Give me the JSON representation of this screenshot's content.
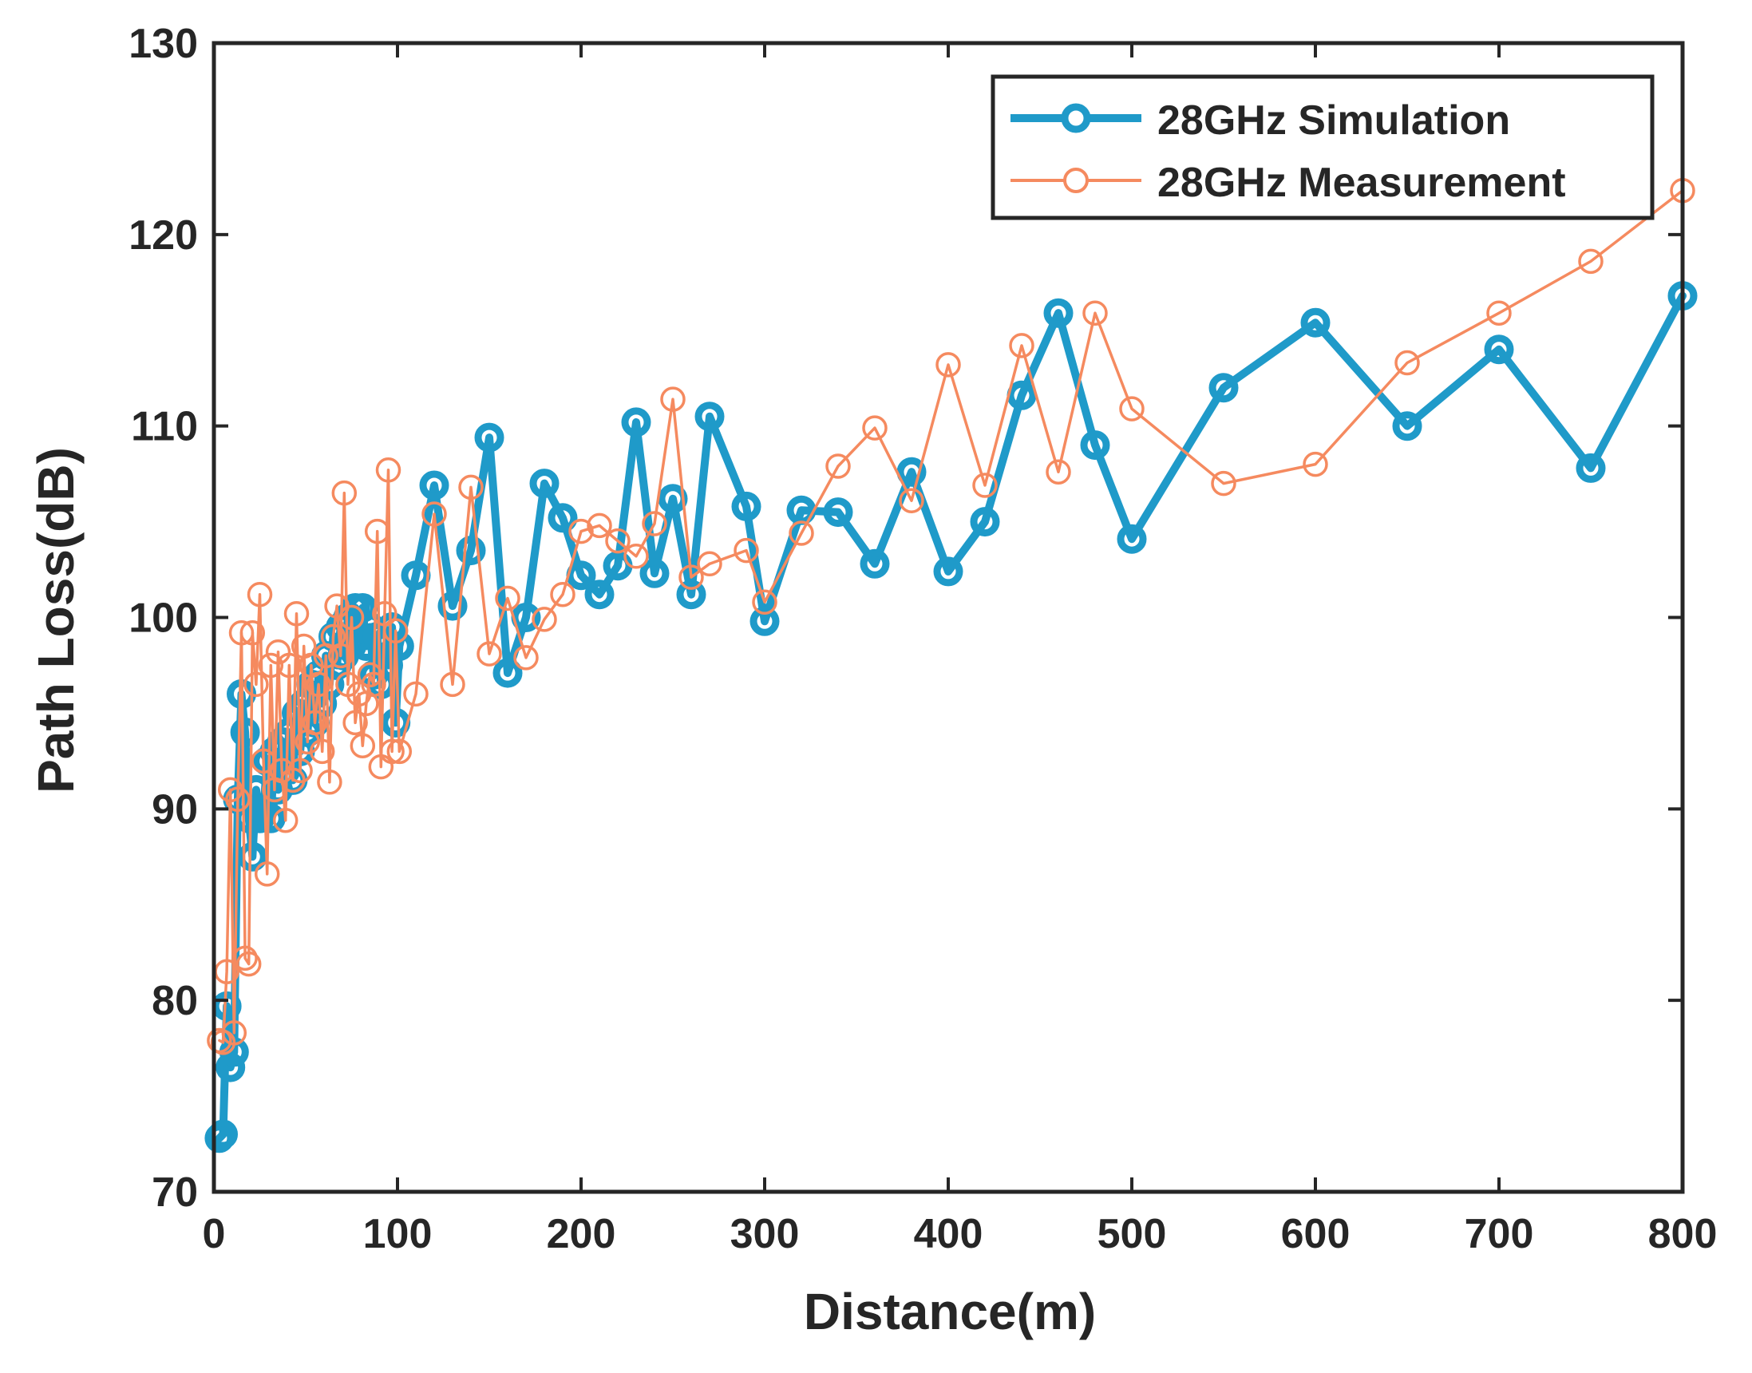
{
  "chart_data": {
    "type": "line",
    "title": "",
    "xlabel": "Distance(m)",
    "ylabel": "Path Loss(dB)",
    "xlim": [
      0,
      800
    ],
    "ylim": [
      70,
      130
    ],
    "xticks": [
      0,
      100,
      200,
      300,
      400,
      500,
      600,
      700,
      800
    ],
    "yticks": [
      70,
      80,
      90,
      100,
      110,
      120,
      130
    ],
    "legend_position": "top-right",
    "grid": false,
    "series": [
      {
        "name": "28GHz Simulation",
        "color": "#1f9ac9",
        "marker": "circle",
        "weight": "thick",
        "x": [
          3,
          5,
          7,
          9,
          11,
          13,
          15,
          17,
          19,
          21,
          23,
          25,
          27,
          29,
          31,
          33,
          35,
          37,
          39,
          41,
          43,
          45,
          47,
          49,
          51,
          53,
          55,
          57,
          59,
          61,
          63,
          65,
          67,
          69,
          71,
          73,
          75,
          77,
          79,
          81,
          83,
          85,
          87,
          89,
          91,
          93,
          95,
          97,
          99,
          101,
          110,
          120,
          130,
          140,
          150,
          160,
          170,
          180,
          190,
          200,
          210,
          220,
          230,
          240,
          250,
          260,
          270,
          290,
          300,
          320,
          340,
          360,
          380,
          400,
          420,
          440,
          460,
          480,
          500,
          550,
          600,
          650,
          700,
          750,
          800
        ],
        "values": [
          72.8,
          73.0,
          79.7,
          76.5,
          77.3,
          90.5,
          96.0,
          94.0,
          89.5,
          87.5,
          91.0,
          89.5,
          90.0,
          92.5,
          89.5,
          93.0,
          91.0,
          93.5,
          92.0,
          94.0,
          91.5,
          95.0,
          93.0,
          95.5,
          94.0,
          96.5,
          94.5,
          97.0,
          95.5,
          98.0,
          96.5,
          99.0,
          97.5,
          99.5,
          98.0,
          100.0,
          98.5,
          100.5,
          99.0,
          100.5,
          98.5,
          99.5,
          97.0,
          99.0,
          96.5,
          98.5,
          97.5,
          99.5,
          94.5,
          98.5,
          102.2,
          106.9,
          100.6,
          103.5,
          109.4,
          97.1,
          100.0,
          107.0,
          105.2,
          102.2,
          101.2,
          102.7,
          110.2,
          102.3,
          106.2,
          101.2,
          110.5,
          105.8,
          99.8,
          105.6,
          105.5,
          102.8,
          107.6,
          102.4,
          105.0,
          111.6,
          115.9,
          109.0,
          104.1,
          112.0,
          115.4,
          110.0,
          114.0,
          107.8,
          116.8
        ]
      },
      {
        "name": "28GHz Measurement",
        "color": "#f58a5f",
        "marker": "circle",
        "weight": "thin",
        "x": [
          3,
          5,
          7,
          9,
          11,
          13,
          15,
          17,
          19,
          21,
          23,
          25,
          27,
          29,
          31,
          33,
          35,
          37,
          39,
          41,
          43,
          45,
          47,
          49,
          51,
          53,
          55,
          57,
          59,
          61,
          63,
          65,
          67,
          69,
          71,
          73,
          75,
          77,
          79,
          81,
          83,
          85,
          87,
          89,
          91,
          93,
          95,
          97,
          99,
          101,
          110,
          120,
          130,
          140,
          150,
          160,
          170,
          180,
          190,
          200,
          210,
          220,
          230,
          240,
          250,
          260,
          270,
          290,
          300,
          320,
          340,
          360,
          380,
          400,
          420,
          440,
          460,
          480,
          500,
          550,
          600,
          650,
          700,
          750,
          800
        ],
        "values": [
          77.9,
          77.8,
          81.5,
          91.0,
          78.3,
          90.5,
          99.2,
          82.2,
          81.9,
          99.2,
          96.5,
          101.2,
          92.5,
          86.6,
          97.5,
          91.0,
          98.2,
          92.0,
          89.4,
          97.5,
          91.5,
          100.2,
          92.0,
          98.5,
          93.5,
          97.5,
          94.5,
          96.5,
          93.0,
          98.0,
          91.4,
          99.0,
          100.6,
          98.0,
          106.5,
          96.5,
          100.0,
          94.5,
          96.0,
          93.3,
          95.5,
          97.0,
          96.5,
          104.5,
          92.2,
          100.2,
          107.7,
          93.0,
          99.3,
          93.0,
          96.0,
          105.4,
          96.5,
          106.8,
          98.1,
          101.0,
          97.9,
          99.9,
          101.2,
          104.5,
          104.8,
          104.0,
          103.2,
          104.9,
          111.4,
          102.1,
          102.8,
          103.5,
          100.8,
          104.4,
          107.9,
          109.9,
          106.1,
          113.2,
          106.9,
          114.2,
          107.6,
          115.9,
          110.9,
          107.0,
          108.0,
          113.3,
          115.9,
          118.6,
          122.3
        ]
      }
    ]
  }
}
